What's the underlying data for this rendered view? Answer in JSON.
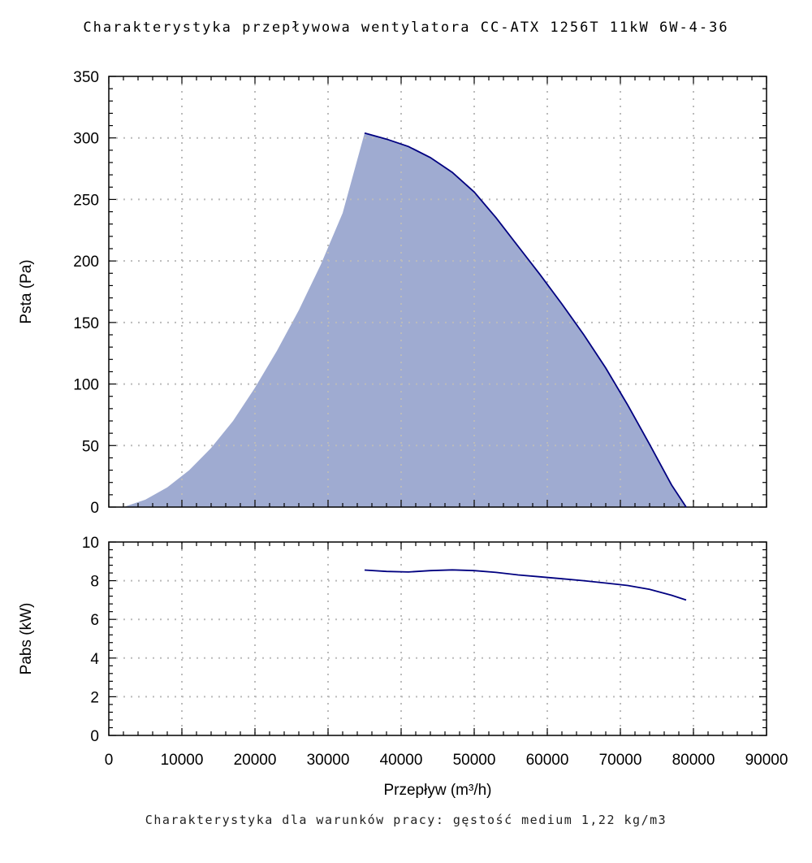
{
  "title": "Charakterystyka przepływowa wentylatora CC-ATX 1256T 11kW 6W-4-36",
  "footer": "Charakterystyka dla warunków pracy: gęstość medium 1,22 kg/m3",
  "chart_data": [
    {
      "type": "area",
      "ylabel": "Psta (Pa)",
      "xlim": [
        0,
        90000
      ],
      "ylim": [
        0,
        350
      ],
      "yticks": [
        0,
        50,
        100,
        150,
        200,
        250,
        300,
        350
      ],
      "grid": true,
      "fill_color": "#9fabd1",
      "line_color": "#000080",
      "system_curve": {
        "x": [
          2000,
          5000,
          8000,
          11000,
          14000,
          17000,
          20000,
          23000,
          26000,
          29000,
          32000,
          35000
        ],
        "y": [
          0,
          6,
          16,
          30,
          48,
          70,
          97,
          127,
          160,
          197,
          239,
          304
        ]
      },
      "series": [
        {
          "x": [
            35000,
            38000,
            41000,
            44000,
            47000,
            50000,
            53000,
            56000,
            59000,
            62000,
            65000,
            68000,
            71000,
            74000,
            77000,
            79000
          ],
          "y": [
            304,
            299,
            293,
            284,
            272,
            256,
            235,
            212,
            189,
            165,
            140,
            113,
            83,
            51,
            18,
            0
          ]
        }
      ]
    },
    {
      "type": "line",
      "xlabel": "Przepływ (m³/h)",
      "ylabel": "Pabs (kW)",
      "xlim": [
        0,
        90000
      ],
      "ylim": [
        0,
        10
      ],
      "xticks": [
        0,
        10000,
        20000,
        30000,
        40000,
        50000,
        60000,
        70000,
        80000,
        90000
      ],
      "yticks": [
        0,
        2,
        4,
        6,
        8,
        10
      ],
      "grid": true,
      "line_color": "#000080",
      "series": [
        {
          "x": [
            35000,
            38000,
            41000,
            44000,
            47000,
            50000,
            53000,
            56000,
            59000,
            62000,
            65000,
            68000,
            71000,
            74000,
            77000,
            79000
          ],
          "y": [
            8.55,
            8.48,
            8.45,
            8.52,
            8.56,
            8.52,
            8.43,
            8.3,
            8.2,
            8.1,
            8.0,
            7.88,
            7.75,
            7.55,
            7.25,
            7.0
          ]
        }
      ]
    }
  ]
}
